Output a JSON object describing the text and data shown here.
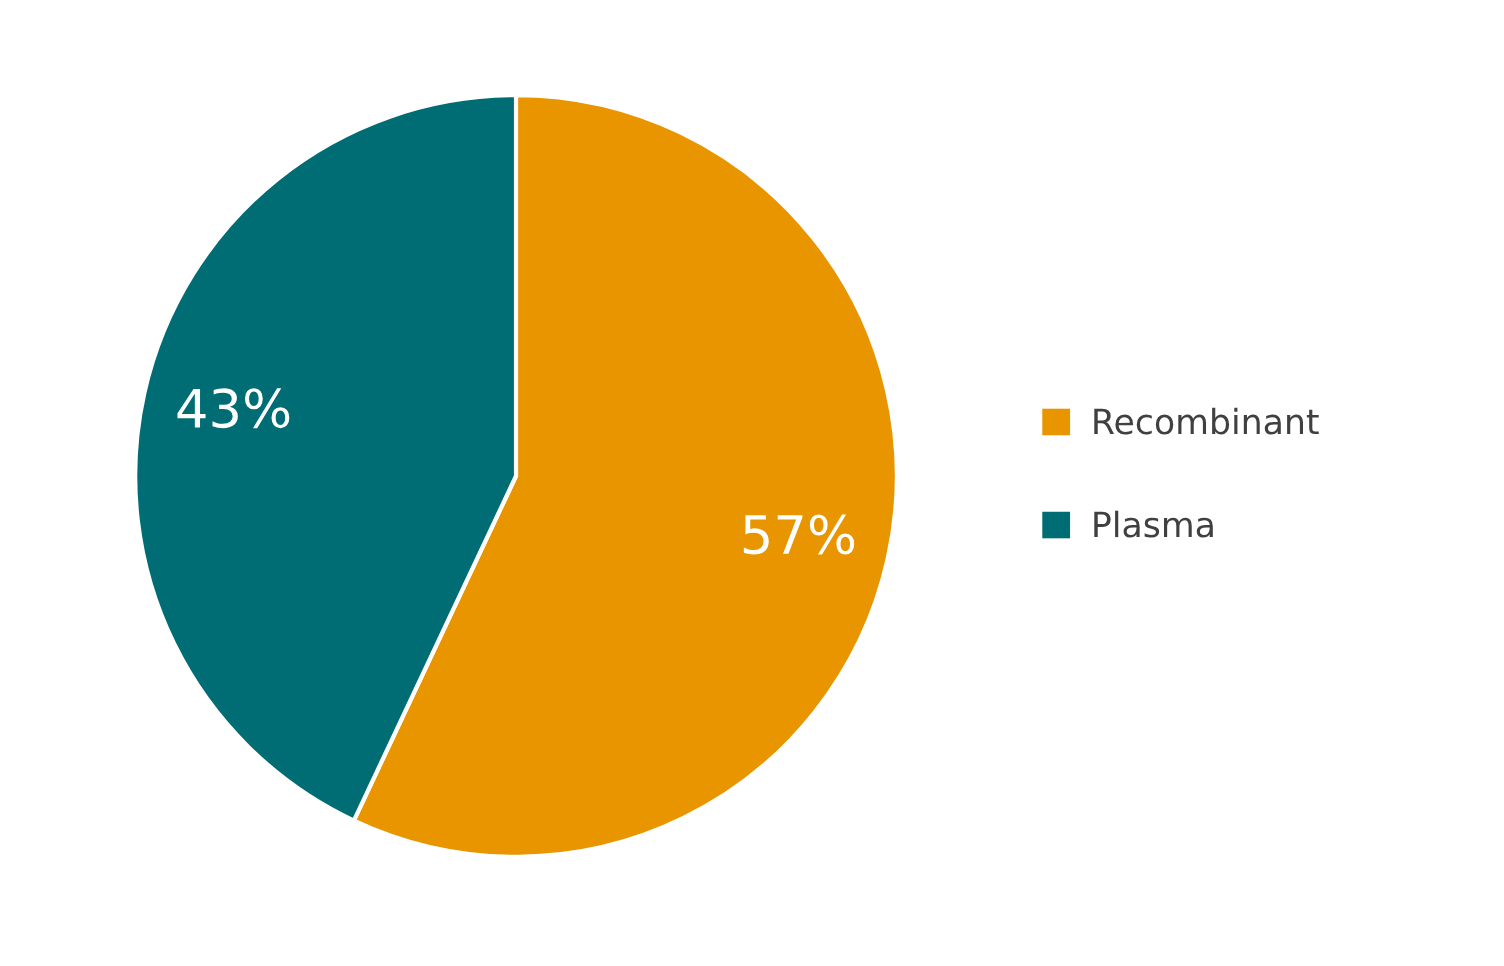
{
  "chart_data": {
    "type": "pie",
    "categories": [
      "Recombinant",
      "Plasma"
    ],
    "values": [
      57,
      43
    ],
    "colors": [
      "#e89500",
      "#006d75"
    ],
    "value_labels": [
      "57%",
      "43%"
    ],
    "legend": "right"
  }
}
